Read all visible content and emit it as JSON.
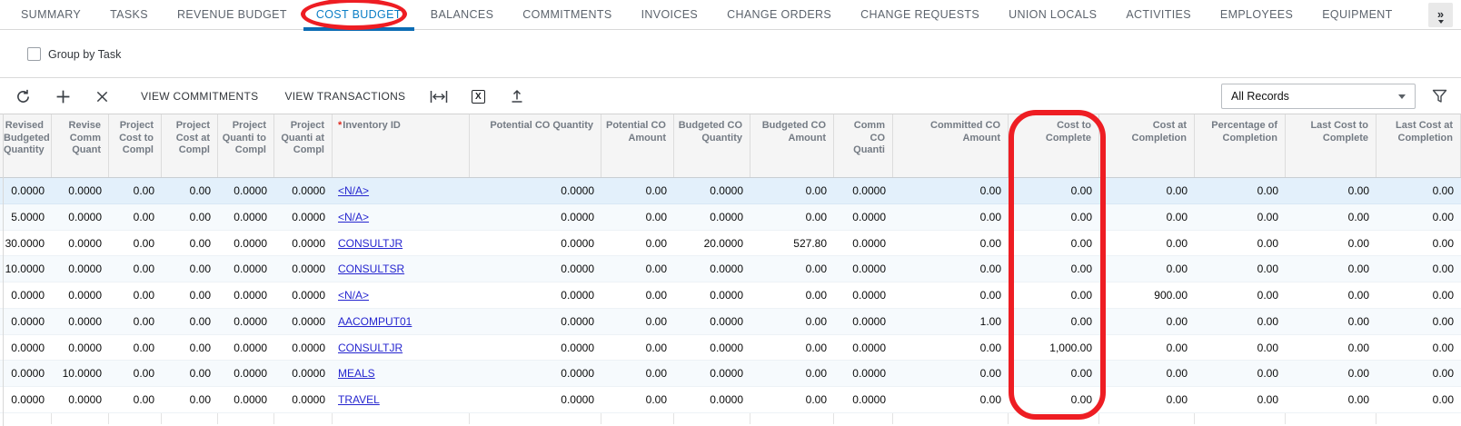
{
  "tabs": {
    "items": [
      {
        "label": "SUMMARY",
        "active": false
      },
      {
        "label": "TASKS",
        "active": false
      },
      {
        "label": "REVENUE BUDGET",
        "active": false
      },
      {
        "label": "COST BUDGET",
        "active": true
      },
      {
        "label": "BALANCES",
        "active": false
      },
      {
        "label": "COMMITMENTS",
        "active": false
      },
      {
        "label": "INVOICES",
        "active": false
      },
      {
        "label": "CHANGE ORDERS",
        "active": false
      },
      {
        "label": "CHANGE REQUESTS",
        "active": false
      },
      {
        "label": "UNION LOCALS",
        "active": false
      },
      {
        "label": "ACTIVITIES",
        "active": false
      },
      {
        "label": "EMPLOYEES",
        "active": false
      },
      {
        "label": "EQUIPMENT",
        "active": false
      }
    ],
    "overflow_button": "»"
  },
  "group_by": {
    "label": "Group by Task",
    "checked": false
  },
  "toolbar": {
    "icons": [
      "refresh-icon",
      "plus-icon",
      "delete-icon",
      "fit-width-icon",
      "export-excel-icon",
      "upload-icon"
    ],
    "excel_glyph": "X",
    "buttons": [
      {
        "label": "VIEW COMMITMENTS"
      },
      {
        "label": "VIEW TRANSACTIONS"
      }
    ],
    "records_filter": {
      "value": "All Records"
    }
  },
  "grid": {
    "columns": [
      {
        "label": "Revised Budgeted Quantity",
        "align": "right"
      },
      {
        "label": "Revise Comm Quant",
        "align": "right"
      },
      {
        "label": "Project Cost to Compl",
        "align": "right"
      },
      {
        "label": "Project Cost at Compl",
        "align": "right"
      },
      {
        "label": "Project Quanti to Compl",
        "align": "right"
      },
      {
        "label": "Project Quanti at Compl",
        "align": "right"
      },
      {
        "label": "Inventory ID",
        "align": "left",
        "required": true
      },
      {
        "label": "Potential CO Quantity",
        "align": "right"
      },
      {
        "label": "Potential CO Amount",
        "align": "right"
      },
      {
        "label": "Budgeted CO Quantity",
        "align": "right"
      },
      {
        "label": "Budgeted CO Amount",
        "align": "right"
      },
      {
        "label": "Comm CO Quanti",
        "align": "right"
      },
      {
        "label": "Committed CO Amount",
        "align": "right"
      },
      {
        "label": "Cost to Complete",
        "align": "right"
      },
      {
        "label": "Cost at Completion",
        "align": "right"
      },
      {
        "label": "Percentage of Completion",
        "align": "right"
      },
      {
        "label": "Last Cost to Complete",
        "align": "right"
      },
      {
        "label": "Last Cost at Completion",
        "align": "right"
      }
    ],
    "selected_row_index": 0,
    "rows": [
      [
        "0.0000",
        "0.0000",
        "0.00",
        "0.00",
        "0.0000",
        "0.0000",
        "<N/A>",
        "0.0000",
        "0.00",
        "0.0000",
        "0.00",
        "0.0000",
        "0.00",
        "0.00",
        "0.00",
        "0.00",
        "0.00",
        "0.00"
      ],
      [
        "5.0000",
        "0.0000",
        "0.00",
        "0.00",
        "0.0000",
        "0.0000",
        "<N/A>",
        "0.0000",
        "0.00",
        "0.0000",
        "0.00",
        "0.0000",
        "0.00",
        "0.00",
        "0.00",
        "0.00",
        "0.00",
        "0.00"
      ],
      [
        "30.0000",
        "0.0000",
        "0.00",
        "0.00",
        "0.0000",
        "0.0000",
        "CONSULTJR",
        "0.0000",
        "0.00",
        "20.0000",
        "527.80",
        "0.0000",
        "0.00",
        "0.00",
        "0.00",
        "0.00",
        "0.00",
        "0.00"
      ],
      [
        "10.0000",
        "0.0000",
        "0.00",
        "0.00",
        "0.0000",
        "0.0000",
        "CONSULTSR",
        "0.0000",
        "0.00",
        "0.0000",
        "0.00",
        "0.0000",
        "0.00",
        "0.00",
        "0.00",
        "0.00",
        "0.00",
        "0.00"
      ],
      [
        "0.0000",
        "0.0000",
        "0.00",
        "0.00",
        "0.0000",
        "0.0000",
        "<N/A>",
        "0.0000",
        "0.00",
        "0.0000",
        "0.00",
        "0.0000",
        "0.00",
        "0.00",
        "900.00",
        "0.00",
        "0.00",
        "0.00"
      ],
      [
        "0.0000",
        "0.0000",
        "0.00",
        "0.00",
        "0.0000",
        "0.0000",
        "AACOMPUT01",
        "0.0000",
        "0.00",
        "0.0000",
        "0.00",
        "0.0000",
        "1.00",
        "0.00",
        "0.00",
        "0.00",
        "0.00",
        "0.00"
      ],
      [
        "0.0000",
        "0.0000",
        "0.00",
        "0.00",
        "0.0000",
        "0.0000",
        "CONSULTJR",
        "0.0000",
        "0.00",
        "0.0000",
        "0.00",
        "0.0000",
        "0.00",
        "1,000.00",
        "0.00",
        "0.00",
        "0.00",
        "0.00"
      ],
      [
        "0.0000",
        "10.0000",
        "0.00",
        "0.00",
        "0.0000",
        "0.0000",
        "MEALS",
        "0.0000",
        "0.00",
        "0.0000",
        "0.00",
        "0.0000",
        "0.00",
        "0.00",
        "0.00",
        "0.00",
        "0.00",
        "0.00"
      ],
      [
        "0.0000",
        "0.0000",
        "0.00",
        "0.00",
        "0.0000",
        "0.0000",
        "TRAVEL",
        "0.0000",
        "0.00",
        "0.0000",
        "0.00",
        "0.0000",
        "0.00",
        "0.00",
        "0.00",
        "0.00",
        "0.00",
        "0.00"
      ]
    ]
  },
  "annotations": {
    "color": "#ee1d23",
    "circled_tab": "COST BUDGET",
    "circled_column": "Cost to Complete"
  }
}
